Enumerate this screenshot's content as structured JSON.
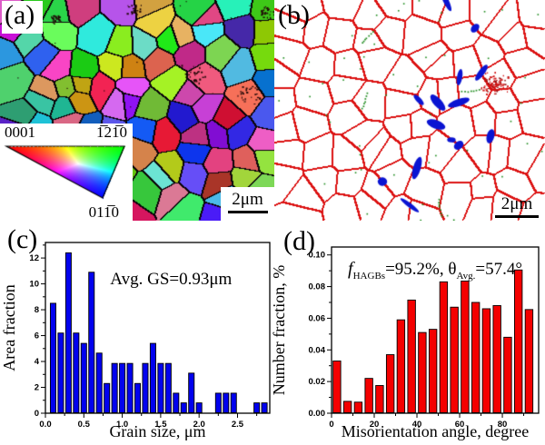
{
  "figure_bg": "#ffffff",
  "panels": {
    "a": {
      "label": "(a)",
      "description": "EBSD inverse pole figure grain orientation map",
      "scalebar": "2μm",
      "legend": {
        "top_left": "0001",
        "top_right": "1̅21̅0",
        "bottom": "011̅0"
      },
      "colors": {
        "grain_boundary": "#000000"
      }
    },
    "b": {
      "label": "(b)",
      "description": "Grain boundary map",
      "scalebar": "2μm",
      "colors": {
        "hagb": "#dc1414",
        "particle": "#0a14d2",
        "lagb": "#1e8c1e",
        "background": "#ffffff"
      }
    },
    "c": {
      "label": "(c)"
    },
    "d": {
      "label": "(d)"
    }
  },
  "chart_data": [
    {
      "id": "c",
      "type": "bar",
      "annotation": "Avg. GS=0.93μm",
      "xlabel": "Grain size, μm",
      "ylabel": "Area fraction",
      "bar_color": "#0202ee",
      "bar_edge": "#000000",
      "bin_width": 0.1,
      "x": [
        0.1,
        0.2,
        0.3,
        0.4,
        0.5,
        0.6,
        0.7,
        0.8,
        0.9,
        1.0,
        1.1,
        1.2,
        1.3,
        1.4,
        1.5,
        1.6,
        1.7,
        1.8,
        1.9,
        2.0,
        2.25,
        2.35,
        2.45,
        2.75,
        2.85
      ],
      "values": [
        8.5,
        6.2,
        12.4,
        6.2,
        5.4,
        10.9,
        4.65,
        2.3,
        3.85,
        3.85,
        3.85,
        2.3,
        3.85,
        5.4,
        3.85,
        3.85,
        1.55,
        0.8,
        3.1,
        0.8,
        1.55,
        1.55,
        1.55,
        0.8,
        0.8
      ],
      "xlim": [
        0,
        2.92
      ],
      "ylim": [
        0,
        13.2
      ],
      "xticks": [
        0,
        0.5,
        1.0,
        1.5,
        2.0,
        2.5
      ],
      "xtick_labels": [
        "0.0",
        "0.5",
        "1.0",
        "1.5",
        "2.0",
        "2.5"
      ],
      "xminor_step": 0.25,
      "yticks": [
        0,
        2,
        4,
        6,
        8,
        10,
        12
      ],
      "ytick_labels": [
        "0",
        "2",
        "4",
        "6",
        "8",
        "10",
        "12"
      ],
      "yminor_step": 1,
      "grid": false,
      "legend": "none"
    },
    {
      "id": "d",
      "type": "bar",
      "annotation_parts": [
        {
          "text": "f",
          "style": "italic",
          "size": 20
        },
        {
          "text": "HAGBs",
          "sub": true
        },
        {
          "text": "=95.2%, θ"
        },
        {
          "text": "Avg.",
          "sub": true
        },
        {
          "text": "=57.4°"
        }
      ],
      "xlabel": "Misorientation angle, degree",
      "ylabel": "Number fraction, %",
      "bar_color": "#f40000",
      "bar_edge": "#000000",
      "bin_width": 5,
      "x": [
        2.5,
        7.5,
        12.5,
        17.5,
        22.5,
        27.5,
        32.5,
        37.5,
        42.5,
        47.5,
        52.5,
        57.5,
        62.5,
        67.5,
        72.5,
        77.5,
        82.5,
        87.5,
        92.5
      ],
      "values": [
        0.033,
        0.0075,
        0.007,
        0.022,
        0.0175,
        0.037,
        0.059,
        0.0715,
        0.051,
        0.053,
        0.083,
        0.067,
        0.0835,
        0.07,
        0.066,
        0.068,
        0.048,
        0.0905,
        0.0655
      ],
      "xlim": [
        0,
        97
      ],
      "ylim": [
        0,
        0.105
      ],
      "xticks": [
        0,
        20,
        40,
        60,
        80
      ],
      "xtick_labels": [
        "0",
        "20",
        "40",
        "60",
        "80"
      ],
      "xminor_step": 10,
      "yticks": [
        0,
        0.02,
        0.04,
        0.06,
        0.08,
        0.1
      ],
      "ytick_labels": [
        "0.00",
        "0.02",
        "0.04",
        "0.06",
        "0.08",
        "0.10"
      ],
      "yminor_step": 0.01,
      "grid": false,
      "legend": "none"
    }
  ]
}
